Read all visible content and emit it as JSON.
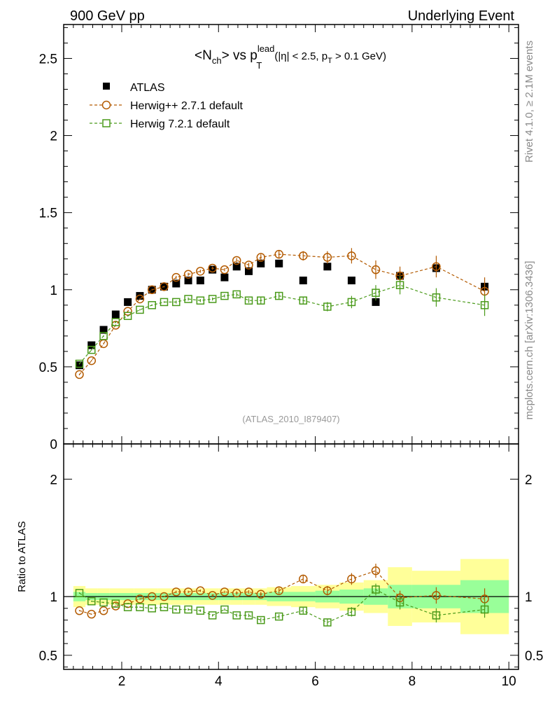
{
  "header": {
    "left": "900 GeV pp",
    "right": "Underlying Event"
  },
  "side_labels": {
    "rivet": "Rivet 4.1.0, ≥ 2.1M events",
    "mcplots": "mcplots.cern.ch [arXiv:1306.3436]"
  },
  "chart_data": [
    {
      "type": "scatter",
      "panel": "main",
      "title_parts": {
        "open": "<N",
        "sub1": "ch",
        "mid": "> vs p",
        "sup": "lead",
        "sub2": "T",
        "cut1": "(|η| < 2.5, p",
        "cut_sub": "T",
        "cut2": " > 0.1 GeV)"
      },
      "watermark": "(ATLAS_2010_I879407)",
      "xlim": [
        0.8,
        10.2
      ],
      "ylim": [
        0,
        2.72
      ],
      "x_ticks": [
        2,
        4,
        6,
        8,
        10
      ],
      "y_ticks": [
        0,
        0.5,
        1,
        1.5,
        2,
        2.5
      ],
      "y_tick_labels": [
        "0",
        "0.5",
        "1",
        "1.5",
        "2",
        "2.5"
      ],
      "legend_position": "top-left",
      "series": [
        {
          "name": "ATLAS",
          "marker": "filled-square",
          "color": "#000000",
          "x": [
            1.125,
            1.375,
            1.625,
            1.875,
            2.125,
            2.375,
            2.625,
            2.875,
            3.125,
            3.375,
            3.625,
            3.875,
            4.125,
            4.375,
            4.625,
            4.875,
            5.25,
            5.75,
            6.25,
            6.75,
            7.25,
            7.75,
            8.5,
            9.5
          ],
          "y": [
            0.51,
            0.64,
            0.74,
            0.84,
            0.92,
            0.96,
            1.0,
            1.02,
            1.04,
            1.06,
            1.06,
            1.13,
            1.08,
            1.15,
            1.12,
            1.17,
            1.17,
            1.06,
            1.15,
            1.06,
            0.92,
            1.09,
            1.14,
            1.02
          ]
        },
        {
          "name": "Herwig++ 2.7.1 default",
          "marker": "open-circle",
          "color": "#b35a00",
          "x": [
            1.125,
            1.375,
            1.625,
            1.875,
            2.125,
            2.375,
            2.625,
            2.875,
            3.125,
            3.375,
            3.625,
            3.875,
            4.125,
            4.375,
            4.625,
            4.875,
            5.25,
            5.75,
            6.25,
            6.75,
            7.25,
            7.75,
            8.5,
            9.5
          ],
          "y": [
            0.45,
            0.54,
            0.65,
            0.77,
            0.86,
            0.94,
            1.0,
            1.02,
            1.08,
            1.1,
            1.12,
            1.14,
            1.13,
            1.19,
            1.16,
            1.21,
            1.23,
            1.22,
            1.21,
            1.22,
            1.13,
            1.09,
            1.15,
            0.99
          ],
          "yerr": [
            0.005,
            0.005,
            0.005,
            0.005,
            0.005,
            0.005,
            0.005,
            0.005,
            0.01,
            0.01,
            0.01,
            0.01,
            0.01,
            0.015,
            0.015,
            0.02,
            0.025,
            0.03,
            0.04,
            0.05,
            0.06,
            0.06,
            0.07,
            0.09
          ]
        },
        {
          "name": "Herwig 7.2.1 default",
          "marker": "open-square",
          "color": "#4a9a1a",
          "x": [
            1.125,
            1.375,
            1.625,
            1.875,
            2.125,
            2.375,
            2.625,
            2.875,
            3.125,
            3.375,
            3.625,
            3.875,
            4.125,
            4.375,
            4.625,
            4.875,
            5.25,
            5.75,
            6.25,
            6.75,
            7.25,
            7.75,
            8.5,
            9.5
          ],
          "y": [
            0.52,
            0.61,
            0.7,
            0.79,
            0.83,
            0.87,
            0.9,
            0.92,
            0.92,
            0.94,
            0.93,
            0.94,
            0.96,
            0.97,
            0.93,
            0.93,
            0.96,
            0.93,
            0.89,
            0.92,
            0.98,
            1.03,
            0.95,
            0.9
          ],
          "yerr": [
            0.005,
            0.005,
            0.005,
            0.005,
            0.005,
            0.005,
            0.005,
            0.005,
            0.01,
            0.01,
            0.01,
            0.01,
            0.01,
            0.015,
            0.015,
            0.02,
            0.02,
            0.025,
            0.03,
            0.04,
            0.05,
            0.06,
            0.06,
            0.07
          ]
        }
      ]
    },
    {
      "type": "scatter",
      "panel": "ratio",
      "ylabel": "Ratio to ATLAS",
      "xlim": [
        0.8,
        10.2
      ],
      "ylim": [
        0.38,
        2.3
      ],
      "x_ticks": [
        2,
        4,
        6,
        8,
        10
      ],
      "x_tick_labels": [
        "2",
        "4",
        "6",
        "8",
        "10"
      ],
      "y_ticks": [
        0.5,
        1,
        2
      ],
      "y_tick_labels": [
        "0.5",
        "1",
        "2"
      ],
      "band_colors": {
        "stat": "#99ff99",
        "total": "#ffff99",
        "reference_line": "#000000"
      },
      "bands": {
        "x_edges": [
          1.0,
          1.25,
          1.5,
          1.75,
          2.0,
          2.25,
          2.5,
          2.75,
          3.0,
          3.25,
          3.5,
          3.75,
          4.0,
          4.25,
          4.5,
          4.75,
          5.0,
          5.5,
          6.0,
          6.5,
          7.0,
          7.5,
          8.0,
          9.0,
          10.0
        ],
        "stat_low": [
          0.96,
          0.97,
          0.97,
          0.97,
          0.97,
          0.97,
          0.97,
          0.97,
          0.97,
          0.97,
          0.97,
          0.97,
          0.97,
          0.97,
          0.97,
          0.97,
          0.96,
          0.96,
          0.95,
          0.94,
          0.93,
          0.9,
          0.9,
          0.86
        ],
        "stat_high": [
          1.04,
          1.03,
          1.03,
          1.03,
          1.03,
          1.03,
          1.03,
          1.03,
          1.03,
          1.03,
          1.03,
          1.03,
          1.03,
          1.03,
          1.03,
          1.03,
          1.04,
          1.04,
          1.05,
          1.06,
          1.07,
          1.1,
          1.1,
          1.14
        ],
        "tot_low": [
          0.91,
          0.93,
          0.93,
          0.93,
          0.93,
          0.93,
          0.93,
          0.93,
          0.93,
          0.93,
          0.93,
          0.93,
          0.93,
          0.93,
          0.93,
          0.93,
          0.92,
          0.91,
          0.9,
          0.88,
          0.86,
          0.75,
          0.78,
          0.68
        ],
        "tot_high": [
          1.09,
          1.07,
          1.07,
          1.07,
          1.07,
          1.07,
          1.07,
          1.07,
          1.07,
          1.07,
          1.07,
          1.07,
          1.07,
          1.07,
          1.07,
          1.07,
          1.08,
          1.09,
          1.1,
          1.12,
          1.14,
          1.25,
          1.22,
          1.32
        ]
      },
      "series": [
        {
          "name": "Herwig++ 2.7.1 default",
          "marker": "open-circle",
          "color": "#b35a00",
          "x": [
            1.125,
            1.375,
            1.625,
            1.875,
            2.125,
            2.375,
            2.625,
            2.875,
            3.125,
            3.375,
            3.625,
            3.875,
            4.125,
            4.375,
            4.625,
            4.875,
            5.25,
            5.75,
            6.25,
            6.75,
            7.25,
            7.75,
            8.5,
            9.5
          ],
          "y": [
            0.88,
            0.85,
            0.88,
            0.92,
            0.94,
            0.98,
            1.0,
            1.0,
            1.04,
            1.04,
            1.05,
            1.01,
            1.04,
            1.03,
            1.04,
            1.02,
            1.05,
            1.15,
            1.05,
            1.15,
            1.22,
            0.99,
            1.01,
            0.98
          ],
          "yerr": [
            0.005,
            0.005,
            0.005,
            0.005,
            0.005,
            0.005,
            0.005,
            0.005,
            0.01,
            0.01,
            0.01,
            0.01,
            0.01,
            0.015,
            0.015,
            0.02,
            0.025,
            0.03,
            0.04,
            0.05,
            0.06,
            0.06,
            0.07,
            0.09
          ]
        },
        {
          "name": "Herwig 7.2.1 default",
          "marker": "open-square",
          "color": "#4a9a1a",
          "x": [
            1.125,
            1.375,
            1.625,
            1.875,
            2.125,
            2.375,
            2.625,
            2.875,
            3.125,
            3.375,
            3.625,
            3.875,
            4.125,
            4.375,
            4.625,
            4.875,
            5.25,
            5.75,
            6.25,
            6.75,
            7.25,
            7.75,
            8.5,
            9.5
          ],
          "y": [
            1.03,
            0.96,
            0.95,
            0.94,
            0.91,
            0.91,
            0.9,
            0.91,
            0.89,
            0.89,
            0.88,
            0.84,
            0.89,
            0.84,
            0.84,
            0.8,
            0.83,
            0.88,
            0.78,
            0.87,
            1.06,
            0.95,
            0.84,
            0.89
          ],
          "yerr": [
            0.005,
            0.005,
            0.005,
            0.005,
            0.005,
            0.005,
            0.005,
            0.005,
            0.01,
            0.01,
            0.01,
            0.01,
            0.01,
            0.015,
            0.015,
            0.02,
            0.02,
            0.025,
            0.03,
            0.04,
            0.05,
            0.06,
            0.06,
            0.07
          ]
        }
      ]
    }
  ]
}
